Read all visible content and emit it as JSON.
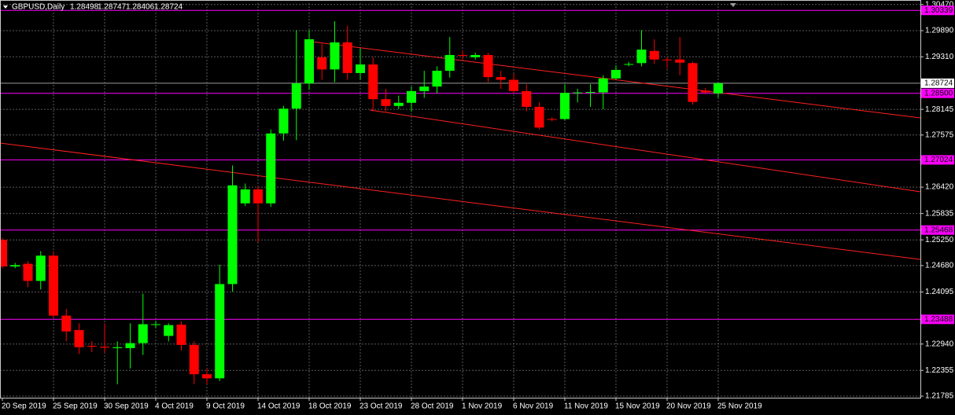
{
  "chart_data": {
    "type": "candlestick",
    "title": "GBPUSD,Daily",
    "ohlc": [
      1.28498,
      1.28747,
      1.28406,
      1.28724
    ],
    "categories": [
      "20 Sep 2019",
      null,
      null,
      null,
      "25 Sep 2019",
      null,
      null,
      null,
      "30 Sep 2019",
      null,
      null,
      null,
      "4 Oct 2019",
      null,
      null,
      null,
      "9 Oct 2019",
      null,
      null,
      null,
      "14 Oct 2019",
      null,
      null,
      null,
      "18 Oct 2019",
      null,
      null,
      null,
      "23 Oct 2019",
      null,
      null,
      null,
      "28 Oct 2019",
      null,
      null,
      null,
      "1 Nov 2019",
      null,
      null,
      null,
      "6 Nov 2019",
      null,
      null,
      null,
      "11 Nov 2019",
      null,
      null,
      null,
      "15 Nov 2019",
      null,
      null,
      null,
      "20 Nov 2019",
      null,
      null,
      null,
      "25 Nov 2019"
    ],
    "open": [
      1.2525,
      1.2466,
      1.2472,
      1.2434,
      1.249,
      1.2357,
      1.2325,
      1.229,
      1.2288,
      1.2285,
      1.2285,
      1.2296,
      1.2337,
      1.2312,
      1.2337,
      1.2292,
      1.2227,
      1.2218,
      1.2427,
      1.2606,
      1.2637,
      1.2606,
      1.2761,
      1.2816,
      1.2872,
      1.293,
      1.2903,
      1.2963,
      1.2895,
      1.2914,
      1.2837,
      1.2822,
      1.2829,
      1.2855,
      1.2865,
      1.29,
      1.2935,
      1.293,
      1.2935,
      1.2886,
      1.288,
      1.2855,
      1.282,
      1.2793,
      1.2793,
      1.2851,
      1.2852,
      1.2852,
      1.2883,
      1.2914,
      1.2917,
      1.2944,
      1.2925,
      1.2925,
      1.2917,
      1.2856,
      1.28498
    ],
    "high": [
      1.253,
      1.2474,
      1.2478,
      1.25,
      1.25,
      1.2372,
      1.234,
      1.23,
      1.234,
      1.23,
      1.234,
      1.2406,
      1.2345,
      1.234,
      1.2345,
      1.23,
      1.224,
      1.247,
      1.269,
      1.265,
      1.2645,
      1.277,
      1.2822,
      1.299,
      1.299,
      1.296,
      1.301,
      1.3,
      1.295,
      1.293,
      1.286,
      1.2845,
      1.2865,
      1.29,
      1.291,
      1.2975,
      1.2945,
      1.294,
      1.294,
      1.29,
      1.2893,
      1.287,
      1.283,
      1.2797,
      1.287,
      1.286,
      1.287,
      1.289,
      1.2912,
      1.292,
      1.299,
      1.297,
      1.293,
      1.2975,
      1.292,
      1.2862,
      1.28747
    ],
    "low": [
      1.2462,
      1.2462,
      1.242,
      1.2415,
      1.2352,
      1.23,
      1.2272,
      1.2276,
      1.2275,
      1.2205,
      1.224,
      1.227,
      1.233,
      1.23,
      1.228,
      1.2205,
      1.2205,
      1.2212,
      1.241,
      1.26,
      1.252,
      1.2598,
      1.2745,
      1.2746,
      1.2858,
      1.288,
      1.2875,
      1.288,
      1.288,
      1.281,
      1.281,
      1.2815,
      1.281,
      1.284,
      1.285,
      1.2885,
      1.2925,
      1.2925,
      1.2875,
      1.286,
      1.285,
      1.281,
      1.277,
      1.2788,
      1.279,
      1.283,
      1.282,
      1.2815,
      1.288,
      1.291,
      1.291,
      1.2915,
      1.2905,
      1.289,
      1.2825,
      1.2848,
      1.28406
    ],
    "close": [
      1.2466,
      1.2469,
      1.2434,
      1.249,
      1.2357,
      1.2322,
      1.2287,
      1.2288,
      1.2286,
      1.2287,
      1.2296,
      1.2338,
      1.2338,
      1.2336,
      1.2292,
      1.2227,
      1.2218,
      1.2427,
      1.2646,
      1.2637,
      1.2606,
      1.2761,
      1.2816,
      1.2872,
      1.297,
      1.2903,
      1.2963,
      1.2895,
      1.2914,
      1.2837,
      1.2822,
      1.2829,
      1.2855,
      1.2865,
      1.29,
      1.2935,
      1.2934,
      1.2935,
      1.2886,
      1.288,
      1.2855,
      1.282,
      1.2774,
      1.2792,
      1.2851,
      1.2852,
      1.2853,
      1.2883,
      1.2902,
      1.2915,
      1.2947,
      1.2925,
      1.2924,
      1.2918,
      1.2831,
      1.2852,
      1.28724
    ],
    "up_color": "#00ff00",
    "down_color": "#ff0000",
    "ylim": [
      1.2175,
      1.305
    ],
    "yticks": [
      {
        "value": 1.3047,
        "label": "1.30470"
      },
      {
        "value": 1.2989,
        "label": "1.29890"
      },
      {
        "value": 1.2931,
        "label": "1.29310"
      },
      1.28145,
      1.27575,
      {
        "value": 1.2642,
        "label": "1.26420"
      },
      1.25835,
      {
        "value": 1.2525,
        "label": "1.25250"
      },
      {
        "value": 1.2468,
        "label": "1.24680"
      },
      1.24095,
      {
        "value": 1.2294,
        "label": "1.22940"
      },
      1.22355,
      1.21785
    ],
    "levels": [
      1.30339,
      {
        "value": 1.285,
        "label": "1.28500"
      },
      1.27024,
      1.25468,
      1.23488
    ],
    "level_color": "#ff00ff",
    "grid": true
  }
}
